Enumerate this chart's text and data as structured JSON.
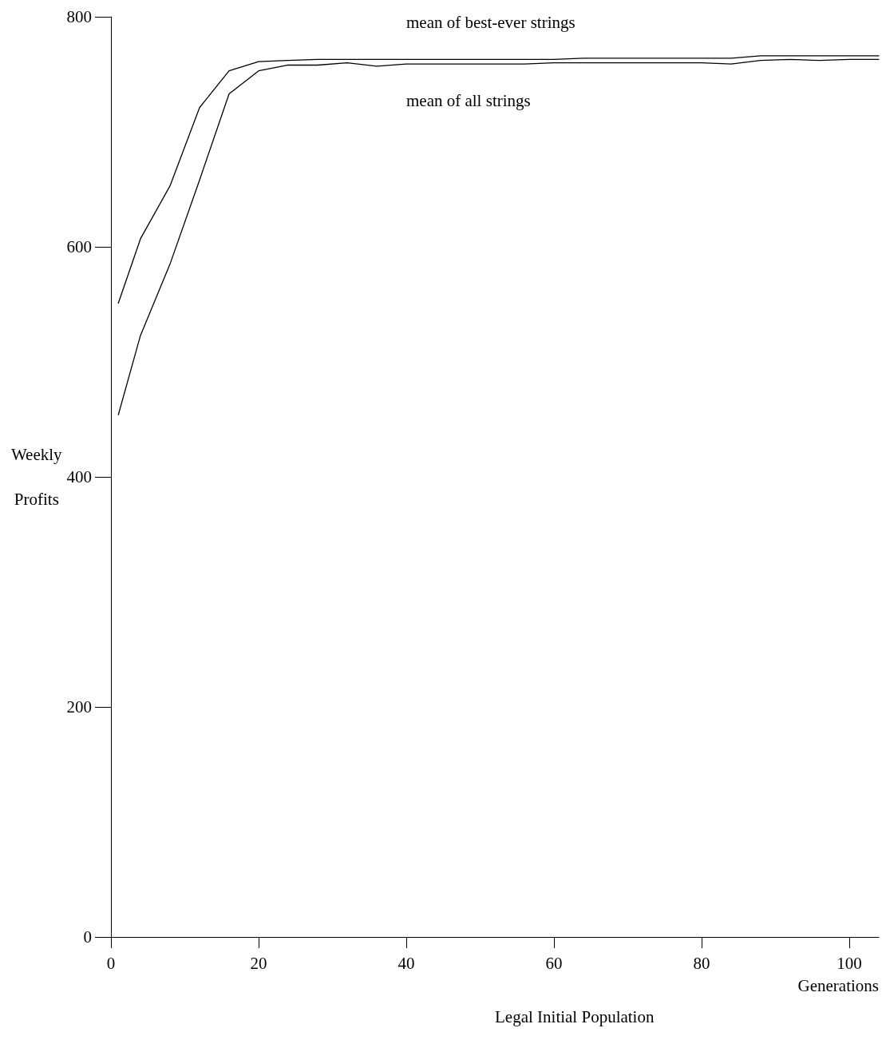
{
  "chart_data": {
    "type": "line",
    "ylabel": "Weekly\nProfits",
    "xlabel": "Generations",
    "annotations": [
      "Legal Initial Population"
    ],
    "x": [
      1,
      4,
      8,
      12,
      16,
      20,
      24,
      28,
      32,
      36,
      40,
      44,
      48,
      52,
      56,
      60,
      64,
      68,
      72,
      76,
      80,
      84,
      88,
      92,
      96,
      100,
      104
    ],
    "series": [
      {
        "name": "mean of best-ever strings",
        "color": "#000000",
        "values": [
          551,
          607,
          653,
          721,
          753,
          761,
          762,
          763,
          763,
          763,
          763,
          763,
          763,
          763,
          763,
          763,
          764,
          764,
          764,
          764,
          764,
          764,
          766,
          766,
          766,
          766,
          766
        ]
      },
      {
        "name": "mean of all strings",
        "color": "#000000",
        "values": [
          454,
          523,
          585,
          658,
          733,
          753,
          758,
          758,
          760,
          757,
          759,
          759,
          759,
          759,
          759,
          760,
          760,
          760,
          760,
          760,
          760,
          759,
          762,
          763,
          762,
          763,
          763
        ]
      }
    ],
    "xlim": [
      0,
      104
    ],
    "xticks": [
      0,
      20,
      40,
      60,
      80,
      100
    ],
    "ylim": [
      0,
      800
    ],
    "yticks": [
      0,
      200,
      400,
      600,
      800
    ],
    "grid": false,
    "legend": false,
    "marker": "none",
    "line_style": "solid"
  }
}
